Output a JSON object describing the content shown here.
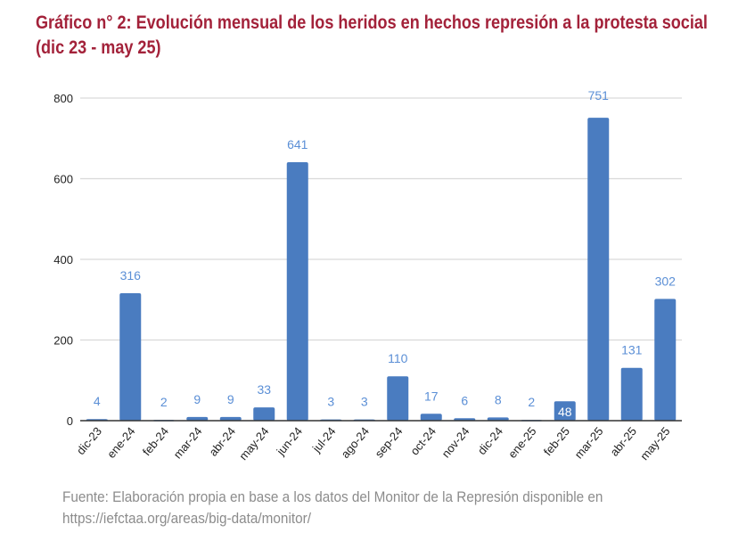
{
  "chart_data": {
    "type": "bar",
    "title": "Gráfico n° 2: Evolución mensual de los heridos en hechos represión a la protesta social (dic 23 - may 25)",
    "xlabel": "",
    "ylabel": "",
    "categories": [
      "dic-23",
      "ene-24",
      "feb-24",
      "mar-24",
      "abr-24",
      "may-24",
      "jun-24",
      "jul-24",
      "ago-24",
      "sep-24",
      "oct-24",
      "nov-24",
      "dic-24",
      "ene-25",
      "feb-25",
      "mar-25",
      "abr-25",
      "may-25"
    ],
    "values": [
      4,
      316,
      2,
      9,
      9,
      33,
      641,
      3,
      3,
      110,
      17,
      6,
      8,
      2,
      48,
      751,
      131,
      302
    ],
    "ylim": [
      0,
      800
    ],
    "yticks": [
      0,
      200,
      400,
      600,
      800
    ],
    "grid": true,
    "legend": "none",
    "bar_color": "#4a7cc0",
    "label_color": "#5b8fd6"
  },
  "source": {
    "line1": "Fuente: Elaboración propia en base a los datos del Monitor de la Represión disponible en",
    "line2": "https://iefctaa.org/areas/big-data/monitor/"
  }
}
